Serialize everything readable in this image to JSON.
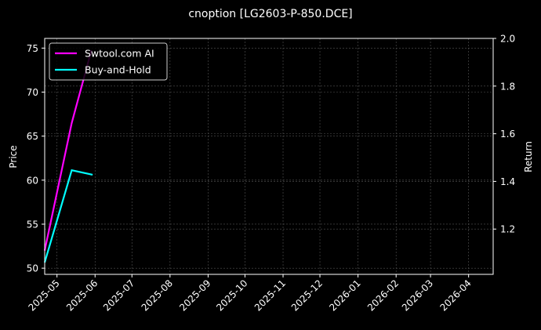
{
  "chart_data": {
    "type": "line",
    "title": "cnoption [LG2603-P-850.DCE]",
    "xlabel": "",
    "ylabel_left": "Price",
    "ylabel_right": "Return",
    "xlim": [
      "2025-04-21",
      "2026-04-21"
    ],
    "ylim_left": [
      49.3,
      76.1
    ],
    "ylim_right": [
      1.01,
      2.0
    ],
    "x_ticks": [
      "2025-05",
      "2025-06",
      "2025-07",
      "2025-08",
      "2025-09",
      "2025-10",
      "2025-11",
      "2025-12",
      "2026-01",
      "2026-02",
      "2026-03",
      "2026-04"
    ],
    "y_ticks_left": [
      50,
      55,
      60,
      65,
      70,
      75
    ],
    "y_ticks_right": [
      1.2,
      1.4,
      1.6,
      1.8,
      2.0
    ],
    "grid": true,
    "legend_placement": "top-left",
    "series": [
      {
        "name": "Swtool.com AI",
        "color": "#ff00ff",
        "axis": "right",
        "x": [
          "2025-04-21",
          "2025-05-13",
          "2025-05-29"
        ],
        "y": [
          1.11,
          1.645,
          1.95
        ]
      },
      {
        "name": "Buy-and-Hold",
        "color": "#00ffff",
        "axis": "right",
        "x": [
          "2025-04-21",
          "2025-05-13",
          "2025-05-30"
        ],
        "y": [
          1.06,
          1.447,
          1.428
        ]
      }
    ]
  }
}
